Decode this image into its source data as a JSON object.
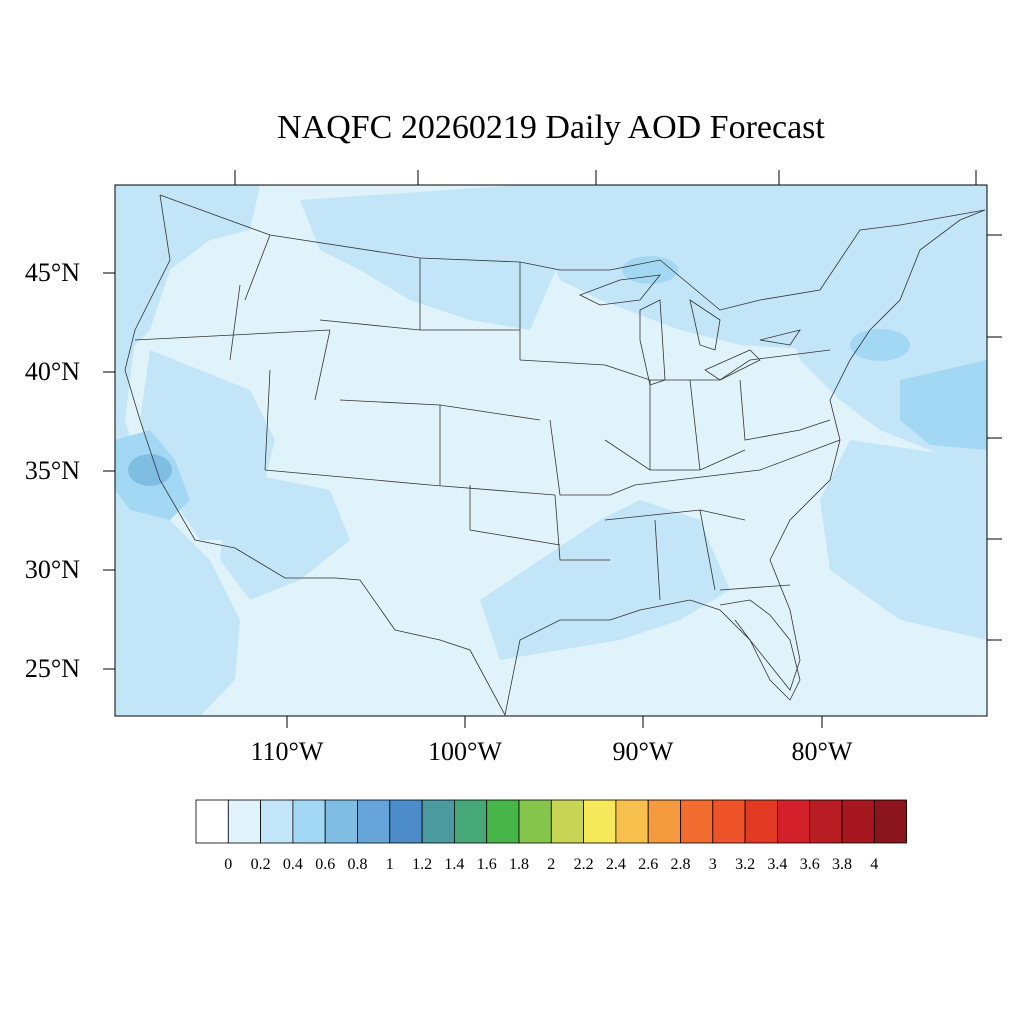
{
  "title": "NAQFC 20260219 Daily AOD Forecast",
  "map": {
    "region": "Contiguous United States",
    "variable": "Aerosol Optical Depth",
    "date": "20260219",
    "lon_range": [
      -119,
      -71
    ],
    "lat_range": [
      23,
      50
    ],
    "lat_labels": [
      "45°N",
      "40°N",
      "35°N",
      "30°N",
      "25°N"
    ],
    "lon_labels": [
      "110°W",
      "100°W",
      "90°W",
      "80°W"
    ],
    "background_class": "0.2-0.4",
    "features": [
      {
        "name": "pacific-northwest-plume",
        "class": "0.4-0.6"
      },
      {
        "name": "northern-plains-band",
        "class": "0.4-0.6"
      },
      {
        "name": "great-lakes-band",
        "class": "0.4-0.6"
      },
      {
        "name": "california-central-valley-high",
        "class": "0.6-0.8"
      },
      {
        "name": "northeast-atlantic-band",
        "class": "0.4-0.6"
      },
      {
        "name": "gulf-coast-texas-band",
        "class": "0.4-0.6"
      },
      {
        "name": "eastern-pacific-offshore",
        "class": "0.4-0.6"
      },
      {
        "name": "western-atlantic-offshore",
        "class": "0.4-0.6"
      }
    ]
  },
  "colorbar": {
    "labels": [
      "0",
      "0.2",
      "0.4",
      "0.6",
      "0.8",
      "1",
      "1.2",
      "1.4",
      "1.6",
      "1.8",
      "2",
      "2.2",
      "2.4",
      "2.6",
      "2.8",
      "3",
      "3.2",
      "3.4",
      "3.6",
      "3.8",
      "4"
    ],
    "colors": [
      "#ffffff",
      "#e0f3fb",
      "#c2e6f7",
      "#a2d8f3",
      "#80bde3",
      "#66a5d9",
      "#4b8cc9",
      "#4a9aa0",
      "#46a877",
      "#48b548",
      "#86c54b",
      "#c6d654",
      "#f5e85a",
      "#f7c04c",
      "#f59a3f",
      "#f36c2f",
      "#ee5329",
      "#e33a24",
      "#d3202a",
      "#b91d24",
      "#a6181f",
      "#8c141c"
    ]
  }
}
